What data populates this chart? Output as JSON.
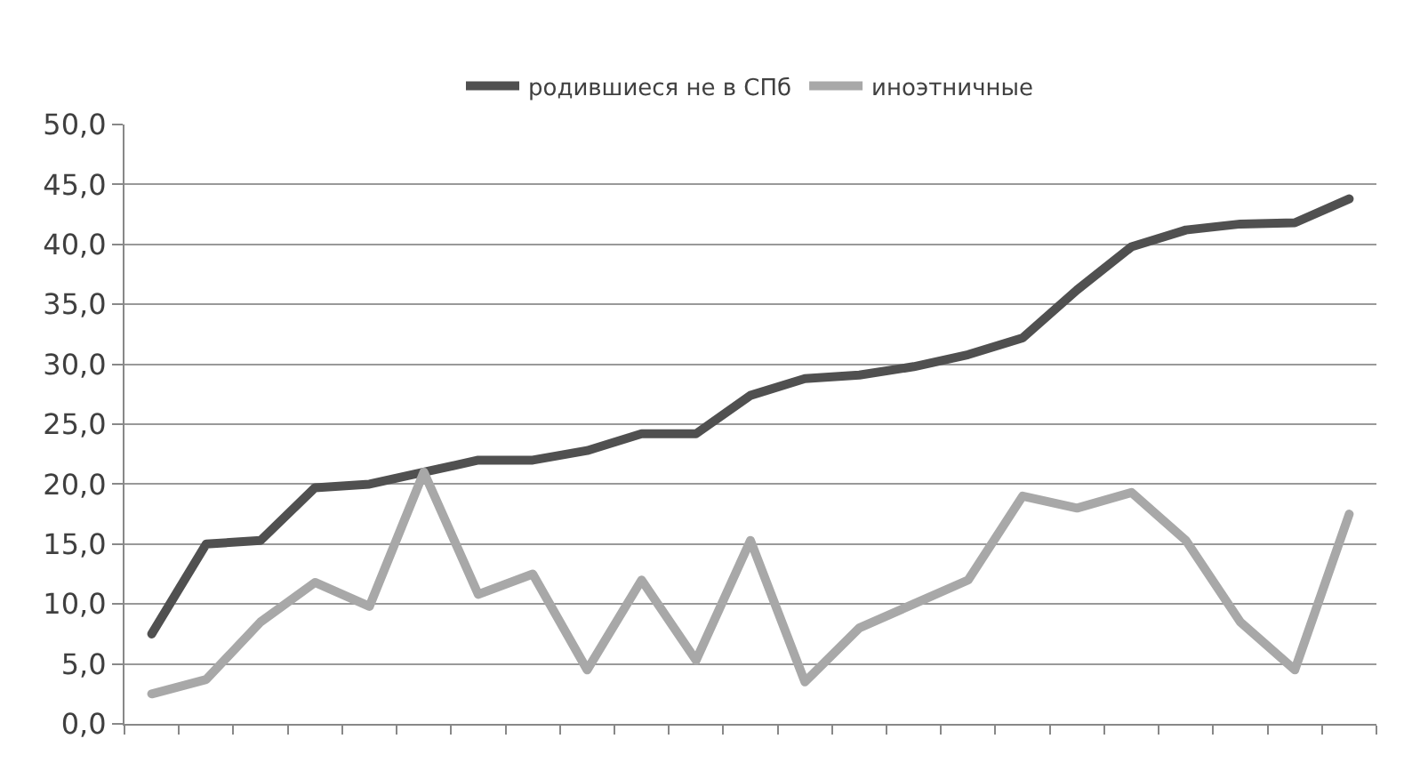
{
  "chart_data": {
    "type": "line",
    "categories": [
      null,
      null,
      null,
      null,
      null,
      null,
      null,
      null,
      null,
      null,
      null,
      null,
      null,
      null,
      null,
      null,
      null,
      null,
      null,
      null,
      null,
      null,
      null
    ],
    "series": [
      {
        "name": "родившиеся не в СПб",
        "color": "#505050",
        "values": [
          7.5,
          15.0,
          15.3,
          19.7,
          20.0,
          21.0,
          22.0,
          22.0,
          22.8,
          24.2,
          24.2,
          27.4,
          28.8,
          29.1,
          29.8,
          30.8,
          32.2,
          36.2,
          39.8,
          41.2,
          41.7,
          41.8,
          43.8
        ]
      },
      {
        "name": "иноэтничные",
        "color": "#a8a8a8",
        "values": [
          2.5,
          3.7,
          8.5,
          11.8,
          9.8,
          21.0,
          10.8,
          12.5,
          4.5,
          12.0,
          5.3,
          15.3,
          3.5,
          8.0,
          10.0,
          12.0,
          19.0,
          18.0,
          19.3,
          15.3,
          8.5,
          4.5,
          17.5
        ]
      }
    ],
    "ylim": [
      0,
      50
    ],
    "yticks": [
      {
        "value": 0,
        "label": "0,0"
      },
      {
        "value": 5,
        "label": "5,0"
      },
      {
        "value": 10,
        "label": "10,0"
      },
      {
        "value": 15,
        "label": "15,0"
      },
      {
        "value": 20,
        "label": "20,0"
      },
      {
        "value": 25,
        "label": "25,0"
      },
      {
        "value": 30,
        "label": "30,0"
      },
      {
        "value": 35,
        "label": "35,0"
      },
      {
        "value": 40,
        "label": "40,0"
      },
      {
        "value": 45,
        "label": "45,0"
      },
      {
        "value": 50,
        "label": "50,0"
      }
    ],
    "grid": "y",
    "legend": "top",
    "marker": "none",
    "line_style": "solid"
  }
}
